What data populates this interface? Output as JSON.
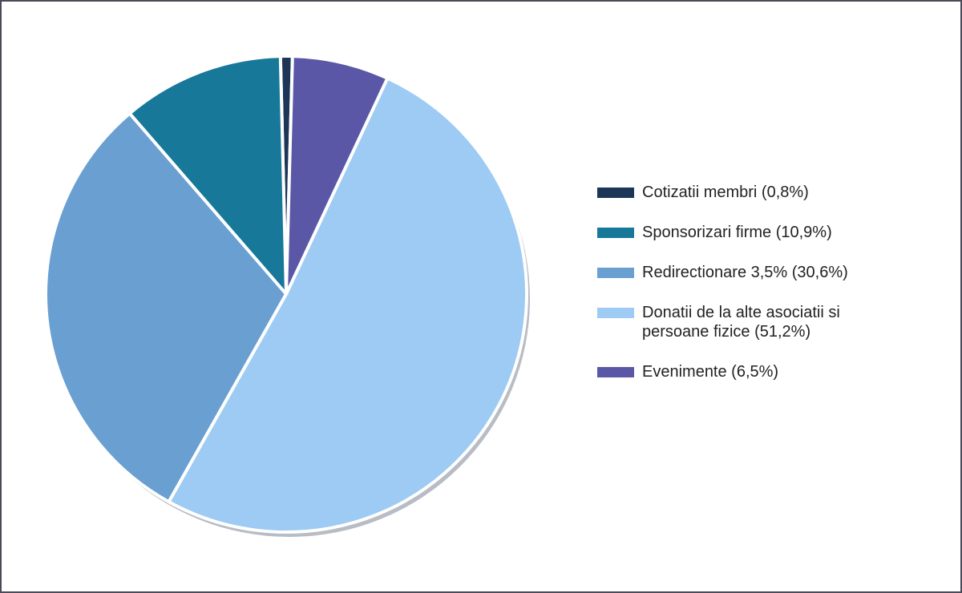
{
  "chart_data": {
    "type": "pie",
    "categories": [
      "Cotizatii membri (0,8%)",
      "Sponsorizari firme (10,9%)",
      "Redirectionare 3,5% (30,6%)",
      "Donatii de la alte asociatii si persoane fizice (51,2%)",
      "Evenimente (6,5%)"
    ],
    "values": [
      0.8,
      10.9,
      30.6,
      51.2,
      6.5
    ],
    "colors": [
      "#1d3557",
      "#17789a",
      "#6a9fd2",
      "#9dcbf3",
      "#5a58a6"
    ],
    "legend": "right"
  }
}
